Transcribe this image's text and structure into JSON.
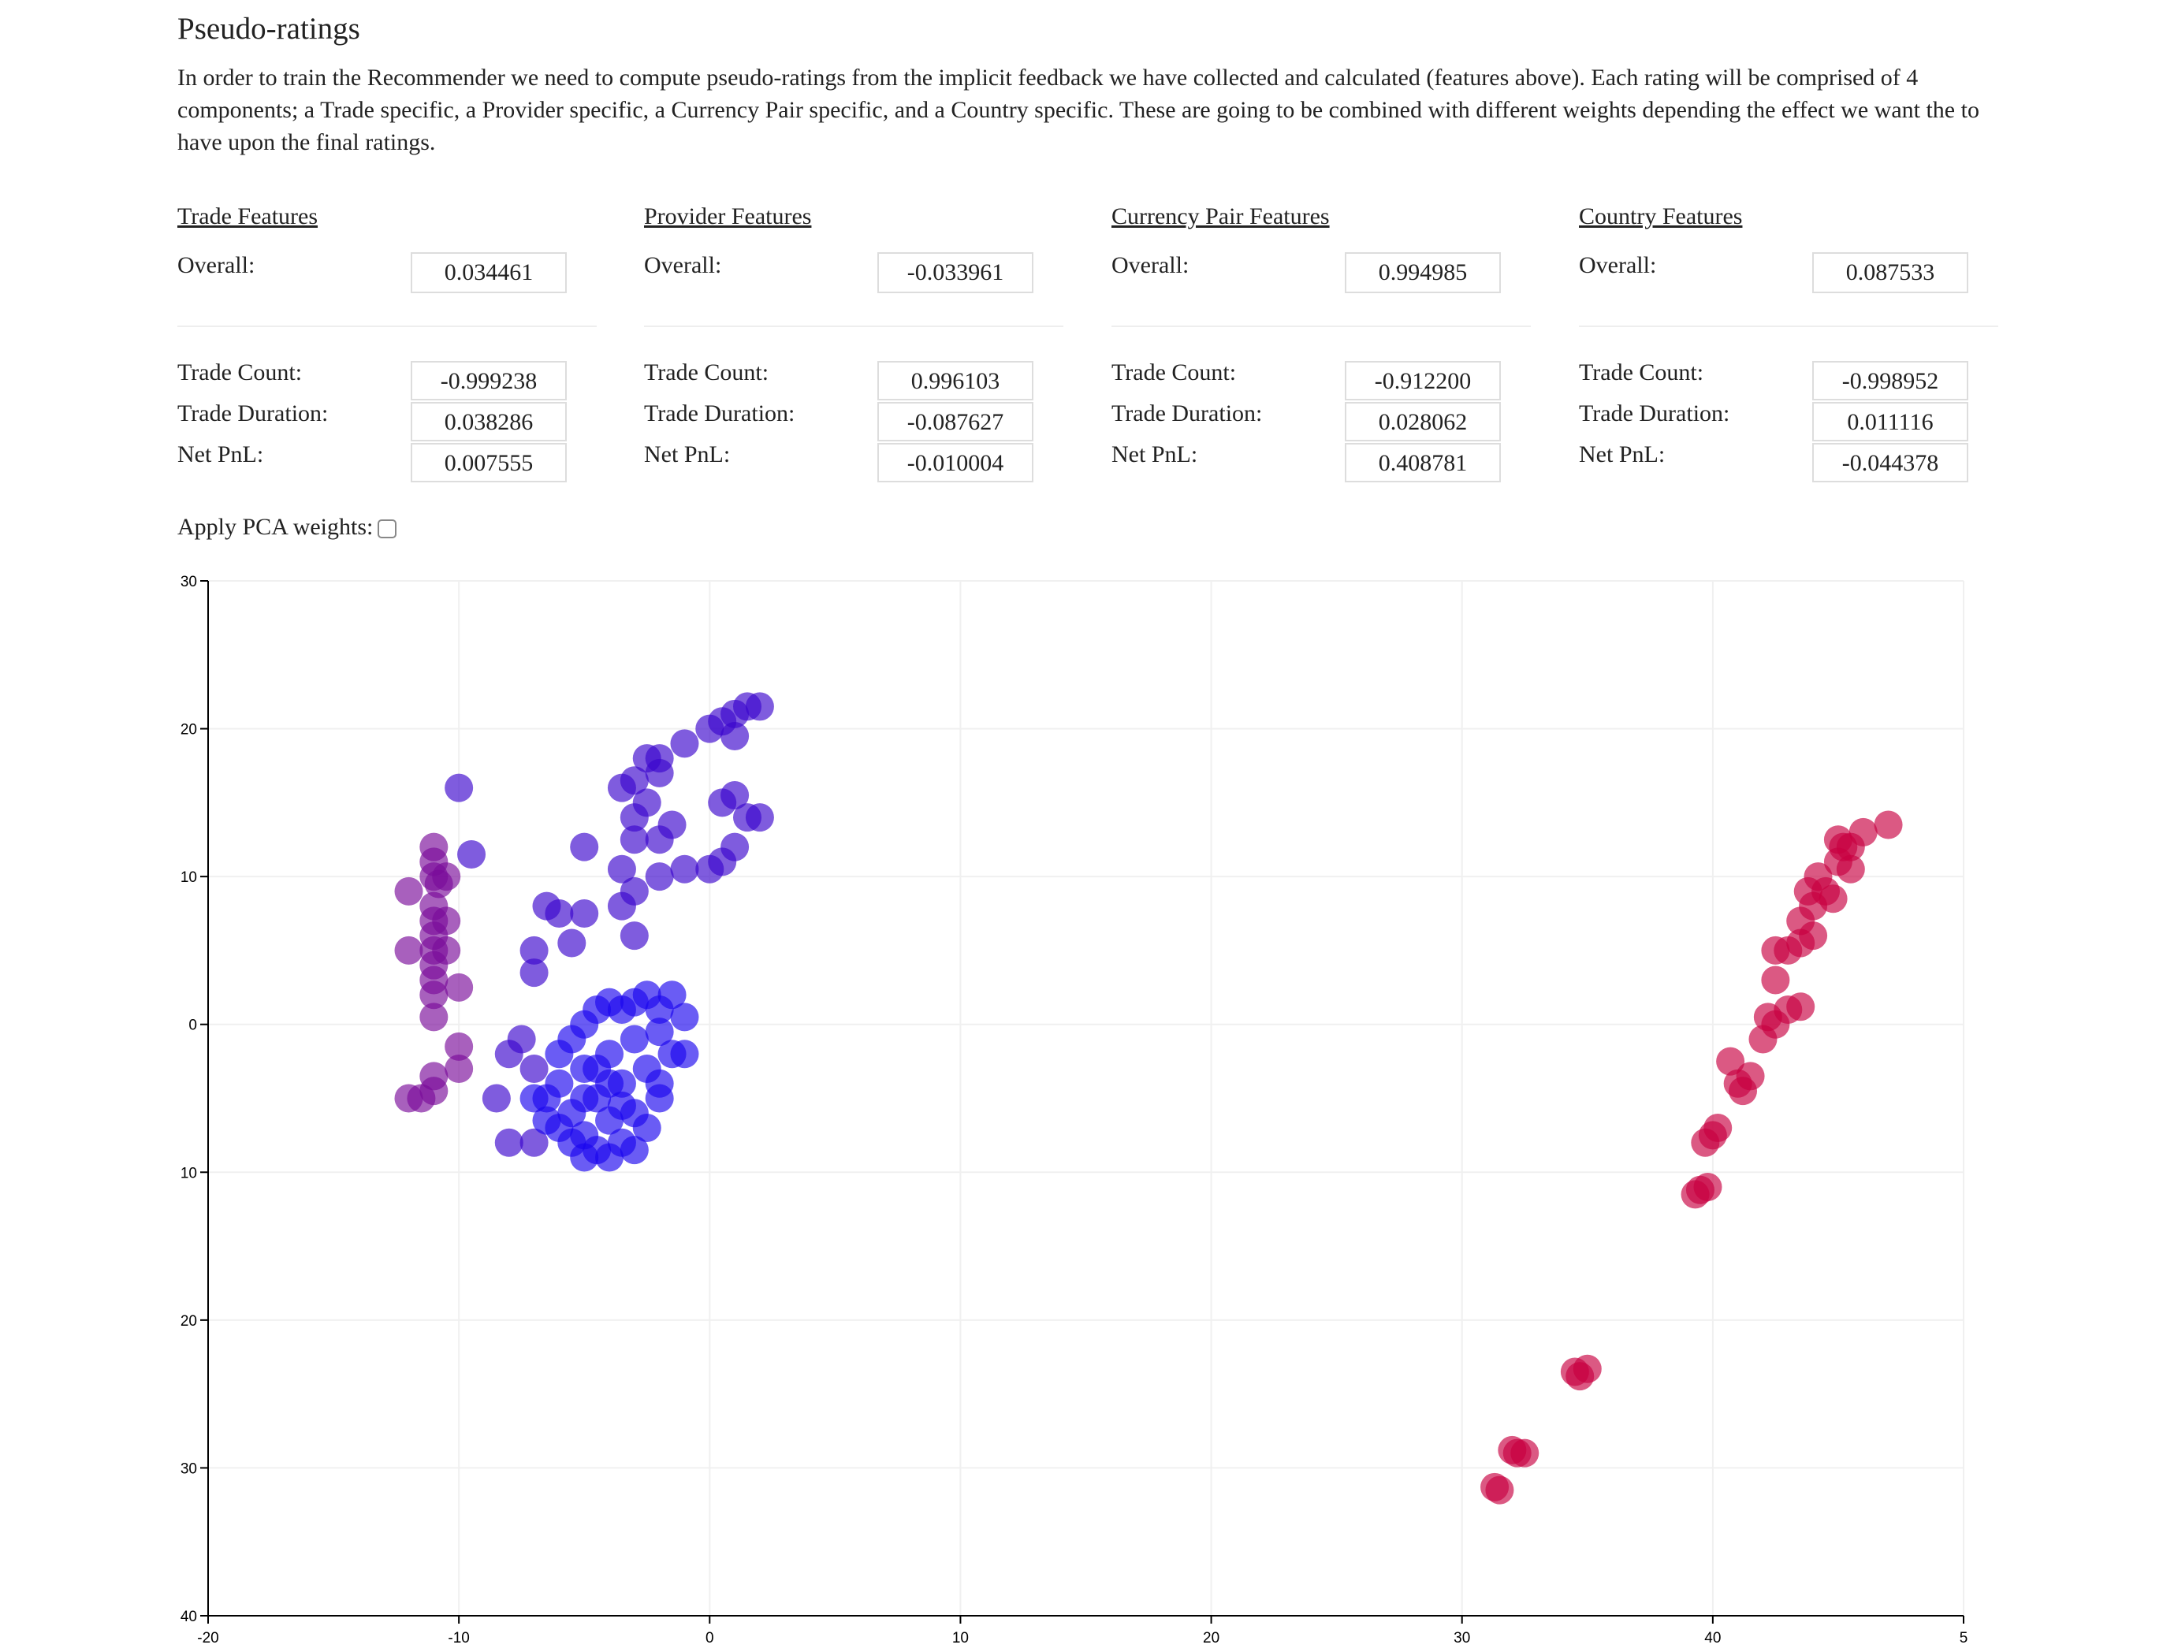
{
  "header": {
    "title": "Pseudo-ratings",
    "description": "In order to train the Recommender we need to compute pseudo-ratings from the implicit feedback we have collected and calculated (features above). Each rating will be comprised of 4 components; a Trade specific, a Provider specific, a Currency Pair specific, and a Country specific. These are going to be combined with different weights depending the effect we want the to have upon the final ratings."
  },
  "feature_groups": [
    {
      "title": "Trade Features",
      "overall_label": "Overall:",
      "overall": "0.034461",
      "rows": [
        {
          "label": "Trade Count:",
          "value": "-0.999238"
        },
        {
          "label": "Trade Duration:",
          "value": "0.038286"
        },
        {
          "label": "Net PnL:",
          "value": "0.007555"
        }
      ]
    },
    {
      "title": "Provider Features",
      "overall_label": "Overall:",
      "overall": "-0.033961",
      "rows": [
        {
          "label": "Trade Count:",
          "value": "0.996103"
        },
        {
          "label": "Trade Duration:",
          "value": "-0.087627"
        },
        {
          "label": "Net PnL:",
          "value": "-0.010004"
        }
      ]
    },
    {
      "title": "Currency Pair Features",
      "overall_label": "Overall:",
      "overall": "0.994985",
      "rows": [
        {
          "label": "Trade Count:",
          "value": "-0.912200"
        },
        {
          "label": "Trade Duration:",
          "value": "0.028062"
        },
        {
          "label": "Net PnL:",
          "value": "0.408781"
        }
      ]
    },
    {
      "title": "Country Features",
      "overall_label": "Overall:",
      "overall": "0.087533",
      "rows": [
        {
          "label": "Trade Count:",
          "value": "-0.998952"
        },
        {
          "label": "Trade Duration:",
          "value": "0.011116"
        },
        {
          "label": "Net PnL:",
          "value": "-0.044378"
        }
      ]
    }
  ],
  "pca": {
    "label": "Apply PCA weights:"
  },
  "chart_data": {
    "type": "scatter",
    "grid": true,
    "xlim": [
      -20,
      50
    ],
    "xticks": [
      -20,
      -10,
      0,
      10,
      20,
      30,
      40,
      {
        "value": 50,
        "label": "5"
      }
    ],
    "ylim": [
      -40,
      30
    ],
    "yticks": [
      30,
      20,
      10,
      0,
      {
        "value": -10,
        "label": "10"
      },
      {
        "value": -20,
        "label": "20"
      },
      {
        "value": -30,
        "label": "30"
      },
      {
        "value": -40,
        "label": "40"
      }
    ],
    "series": [
      {
        "color": "#7a0a9a",
        "x": [
          -12,
          -11,
          -11,
          -11,
          -11,
          -11,
          -11,
          -12,
          -11,
          -11,
          -11,
          -11,
          -12,
          -11,
          -10.5,
          -10.5,
          -11,
          -10.5,
          -11,
          -10,
          -10,
          -10,
          -11.5,
          -10.8
        ],
        "values": [
          9,
          11,
          10,
          8,
          7,
          6,
          5,
          5,
          4,
          2,
          0.5,
          -3.5,
          -5,
          -4.5,
          5,
          7,
          12,
          10,
          3,
          2.5,
          -1.5,
          -3,
          -5,
          9.5
        ]
      },
      {
        "color": "#3a05cc",
        "x": [
          -10,
          -9.5,
          -5,
          -6.5,
          -5,
          -6,
          -7,
          -7,
          -7.5,
          -8,
          -7,
          -8.5,
          -8,
          -7,
          -5.5,
          -3,
          -3.5,
          -3,
          -3.5,
          -3,
          -3,
          -2.5,
          -2,
          -2,
          -1,
          0,
          0.5,
          1,
          1.5,
          2,
          1,
          0.5,
          1,
          1.5,
          2,
          1,
          0.5,
          0,
          -1,
          -1.5,
          -2,
          -2,
          -3.5,
          -3,
          -2.5
        ],
        "values": [
          16,
          11.5,
          12,
          8,
          7.5,
          7.5,
          5,
          3.5,
          -1,
          -2,
          -3,
          -5,
          -8,
          -8,
          5.5,
          6,
          8,
          9,
          10.5,
          12.5,
          14,
          15,
          17,
          18,
          19,
          20,
          20.5,
          21,
          21.5,
          21.5,
          19.5,
          15,
          15.5,
          14,
          14,
          12,
          11,
          10.5,
          10.5,
          13.5,
          12.5,
          10,
          16,
          16.5,
          18
        ]
      },
      {
        "color": "#1a05ee",
        "x": [
          -6,
          -5.5,
          -5,
          -4.5,
          -4,
          -3.5,
          -3,
          -2.5,
          -2,
          -1.5,
          -6,
          -5,
          -4,
          -3,
          -2,
          -1,
          -6.5,
          -5.5,
          -4.5,
          -3.5,
          -2.5,
          -1.5,
          -6,
          -5,
          -4,
          -3,
          -2,
          -5.5,
          -4.5,
          -3.5,
          -2.5,
          -5,
          -4,
          -3,
          -4.5,
          -3.5,
          -6.5,
          -7,
          -1,
          -2,
          -4,
          -5
        ],
        "values": [
          -2,
          -1,
          0,
          1,
          1.5,
          1,
          1.5,
          2,
          1,
          2,
          -4,
          -3,
          -2,
          -1,
          -0.5,
          0.5,
          -5,
          -6,
          -5,
          -4,
          -3,
          -2,
          -7,
          -7.5,
          -6.5,
          -6,
          -5,
          -8,
          -8.5,
          -8,
          -7,
          -9,
          -9,
          -8.5,
          -3,
          -5.5,
          -6.5,
          -5,
          -2,
          -4,
          -4,
          -5
        ]
      },
      {
        "color": "#c80040",
        "x": [
          31.5,
          31.3,
          32.2,
          32.5,
          32,
          34.5,
          35,
          34.7,
          39.3,
          39.8,
          39.5,
          39.7,
          40.2,
          40,
          41,
          41.2,
          40.7,
          41.5,
          42,
          42.2,
          42.5,
          43,
          43.5,
          42.5,
          42.5,
          43,
          43.5,
          44,
          43.5,
          44,
          44.5,
          44.2,
          45,
          45.5,
          45,
          46,
          47,
          45.5,
          44.8,
          43.8,
          45.2
        ],
        "values": [
          -31.5,
          -31.3,
          -29,
          -29,
          -28.8,
          -23.5,
          -23.3,
          -23.8,
          -11.5,
          -11,
          -11.2,
          -8,
          -7,
          -7.5,
          -4,
          -4.5,
          -2.5,
          -3.5,
          -1,
          0.5,
          0,
          1,
          1.2,
          3,
          5,
          5,
          5.5,
          6,
          7,
          8,
          9,
          10,
          11,
          12,
          12.5,
          13,
          13.5,
          10.5,
          8.5,
          9,
          12
        ]
      }
    ]
  }
}
